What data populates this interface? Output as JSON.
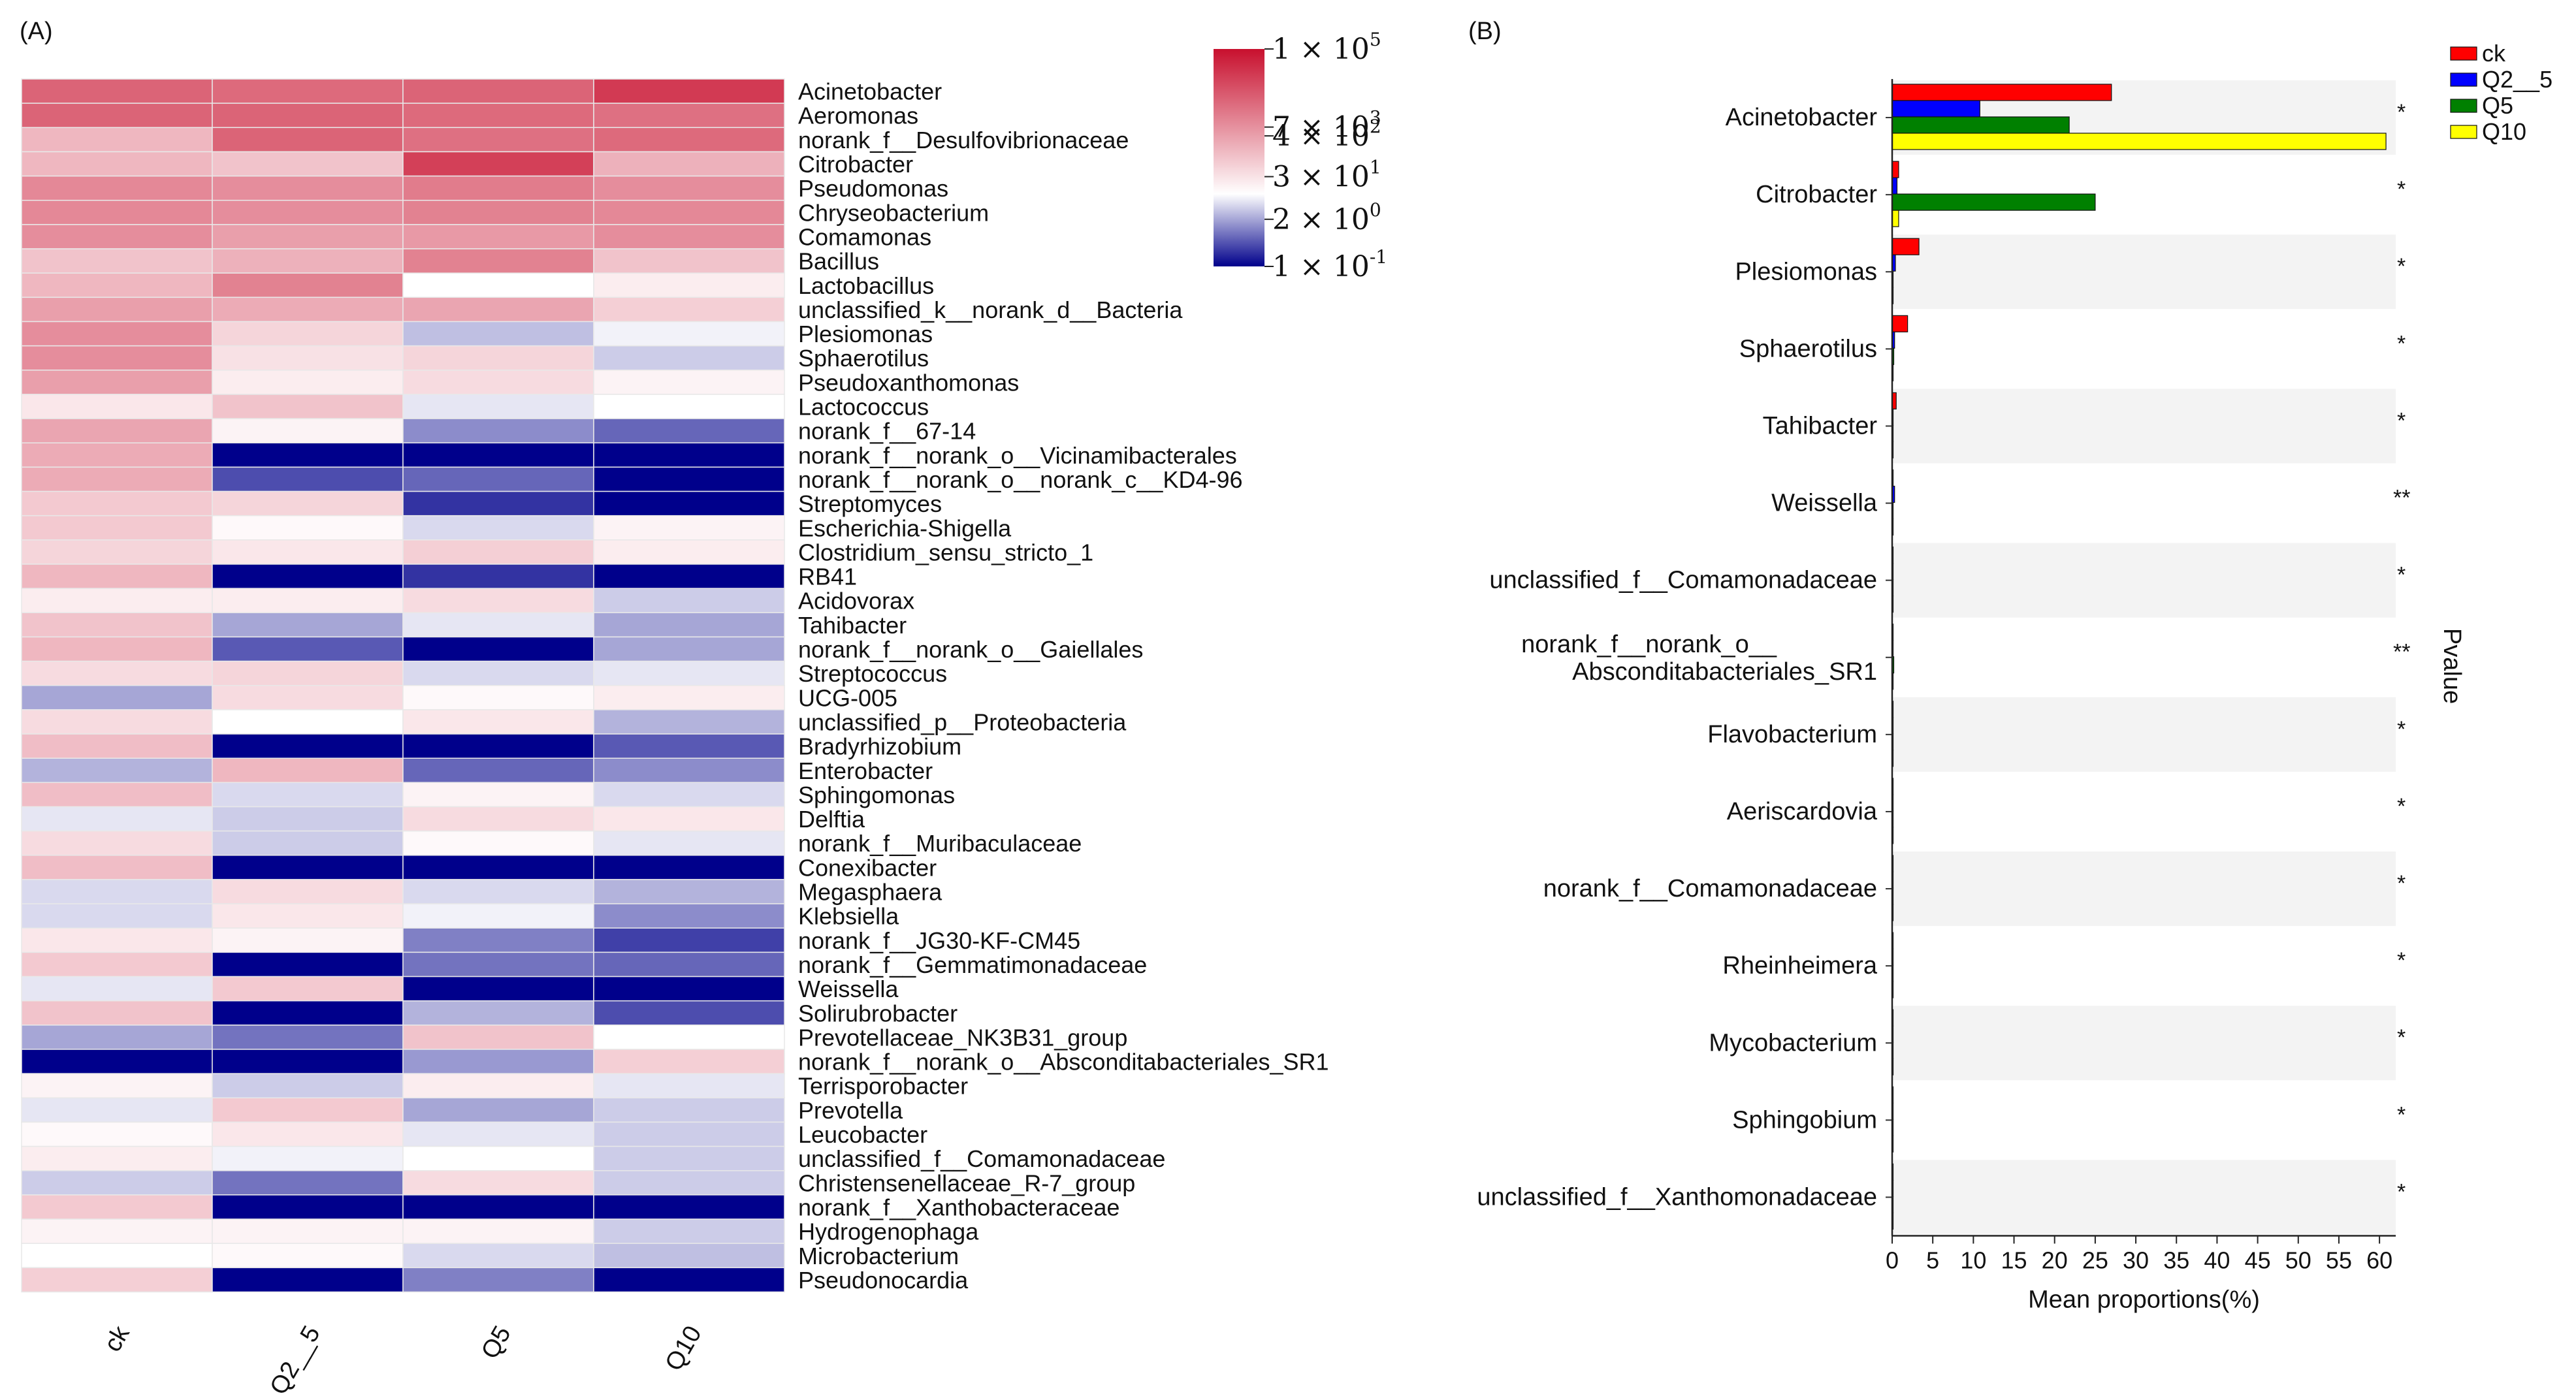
{
  "chart_data": [
    {
      "type": "heatmap",
      "panel_label": "(A)",
      "columns": [
        "ck",
        "Q2__5",
        "Q5",
        "Q10"
      ],
      "rows": [
        "Acinetobacter",
        "Aeromonas",
        "norank_f__Desulfovibrionaceae",
        "Citrobacter",
        "Pseudomonas",
        "Chryseobacterium",
        "Comamonas",
        "Bacillus",
        "Lactobacillus",
        "unclassified_k__norank_d__Bacteria",
        "Plesiomonas",
        "Sphaerotilus",
        "Pseudoxanthomonas",
        "Lactococcus",
        "norank_f__67-14",
        "norank_f__norank_o__Vicinamibacterales",
        "norank_f__norank_o__norank_c__KD4-96",
        "Streptomyces",
        "Escherichia-Shigella",
        "Clostridium_sensu_stricto_1",
        "RB41",
        "Acidovorax",
        "Tahibacter",
        "norank_f__norank_o__Gaiellales",
        "Streptococcus",
        "UCG-005",
        "unclassified_p__Proteobacteria",
        "Bradyrhizobium",
        "Enterobacter",
        "Sphingomonas",
        "Delftia",
        "norank_f__Muribaculaceae",
        "Conexibacter",
        "Megasphaera",
        "Klebsiella",
        "norank_f__JG30-KF-CM45",
        "norank_f__Gemmatimonadaceae",
        "Weissella",
        "Solirubrobacter",
        "Prevotellaceae_NK3B31_group",
        "norank_f__norank_o__Absconditabacteriales_SR1",
        "Terrisporobacter",
        "Prevotella",
        "Leucobacter",
        "unclassified_f__Comamonadaceae",
        "Christensenellaceae_R-7_group",
        "norank_f__Xanthobacteraceae",
        "Hydrogenophaga",
        "Microbacterium",
        "Pseudonocardia"
      ],
      "scale_note": "log10 abundance; colorbar 1e-1 (-1) to 1e5 (5)",
      "values": [
        [
          3.6,
          3.5,
          3.6,
          4.3
        ],
        [
          3.6,
          3.6,
          3.5,
          3.4
        ],
        [
          2.2,
          3.6,
          3.4,
          3.5
        ],
        [
          2.2,
          2.0,
          4.2,
          2.3
        ],
        [
          3.0,
          2.9,
          3.2,
          2.9
        ],
        [
          3.0,
          2.9,
          3.1,
          3.0
        ],
        [
          2.9,
          2.6,
          2.7,
          2.9
        ],
        [
          2.0,
          2.3,
          3.1,
          2.0
        ],
        [
          2.2,
          3.1,
          1.0,
          1.3
        ],
        [
          2.6,
          2.4,
          2.5,
          1.8
        ],
        [
          2.9,
          1.7,
          0.5,
          0.9
        ],
        [
          2.9,
          1.5,
          1.7,
          0.6
        ],
        [
          2.6,
          1.3,
          1.6,
          1.2
        ],
        [
          1.4,
          2.0,
          0.8,
          1.0
        ],
        [
          2.5,
          1.2,
          0.1,
          -0.2
        ],
        [
          2.4,
          -1.0,
          -1.0,
          -1.0
        ],
        [
          2.4,
          -0.4,
          -0.2,
          -1.0
        ],
        [
          1.9,
          1.7,
          -0.6,
          -1.0
        ],
        [
          1.9,
          1.1,
          0.7,
          1.2
        ],
        [
          1.7,
          1.4,
          1.8,
          1.3
        ],
        [
          2.2,
          -1.0,
          -0.6,
          -1.0
        ],
        [
          1.3,
          1.3,
          1.6,
          0.6
        ],
        [
          2.0,
          0.3,
          0.8,
          0.3
        ],
        [
          2.2,
          -0.3,
          -1.0,
          0.3
        ],
        [
          1.6,
          1.7,
          0.7,
          0.8
        ],
        [
          0.3,
          1.6,
          1.1,
          1.3
        ],
        [
          1.6,
          1.0,
          1.4,
          0.4
        ],
        [
          2.1,
          -1.0,
          -1.0,
          -0.3
        ],
        [
          0.4,
          2.2,
          -0.2,
          0.1
        ],
        [
          2.1,
          0.7,
          1.2,
          0.7
        ],
        [
          0.8,
          0.6,
          1.6,
          1.4
        ],
        [
          1.6,
          0.6,
          1.1,
          0.8
        ],
        [
          2.1,
          -1.0,
          -1.0,
          -1.0
        ],
        [
          0.7,
          1.6,
          0.7,
          0.4
        ],
        [
          0.7,
          1.4,
          0.9,
          0.1
        ],
        [
          1.4,
          1.2,
          0.0,
          -0.5
        ],
        [
          1.9,
          -1.0,
          -0.1,
          -0.2
        ],
        [
          0.8,
          1.9,
          -1.0,
          -1.0
        ],
        [
          2.0,
          -1.0,
          0.4,
          -0.4
        ],
        [
          0.3,
          -0.1,
          2.0,
          1.0
        ],
        [
          -1.0,
          -1.0,
          0.2,
          1.8
        ],
        [
          1.2,
          0.6,
          1.3,
          0.8
        ],
        [
          0.8,
          1.9,
          0.3,
          0.6
        ],
        [
          1.1,
          1.4,
          0.8,
          0.6
        ],
        [
          1.3,
          0.9,
          1.0,
          0.6
        ],
        [
          0.6,
          -0.1,
          1.6,
          0.6
        ],
        [
          1.9,
          -1.0,
          -1.0,
          -1.0
        ],
        [
          1.2,
          1.2,
          1.2,
          0.6
        ],
        [
          1.0,
          1.1,
          0.7,
          0.5
        ],
        [
          1.8,
          -1.0,
          0.0,
          -1.0
        ]
      ],
      "colorbar": {
        "tick_bases": [
          "1 × 10",
          "7 × 10",
          "4 × 10",
          "3 × 10",
          "2 × 10",
          "1 × 10"
        ],
        "tick_exps": [
          "5",
          "3",
          "2",
          "1",
          "0",
          "-1"
        ],
        "colors": [
          "#c8102e",
          "#ffffff",
          "#00008b"
        ]
      }
    },
    {
      "type": "bar",
      "orientation": "horizontal",
      "panel_label": "(B)",
      "xlabel": "Mean proportions(%)",
      "ylabel_right": "Pvalue",
      "xlim": [
        0,
        62
      ],
      "xticks": [
        0,
        5,
        10,
        15,
        20,
        25,
        30,
        35,
        40,
        45,
        50,
        55,
        60
      ],
      "categories": [
        "Acinetobacter",
        "Citrobacter",
        "Plesiomonas",
        "Sphaerotilus",
        "Tahibacter",
        "Weissella",
        "unclassified_f__Comamonadaceae",
        "norank_f__norank_o__Absconditabacteriales_SR1",
        "Flavobacterium",
        "Aeriscardovia",
        "norank_f__Comamonadaceae",
        "Rheinheimera",
        "Mycobacterium",
        "Sphingobium",
        "unclassified_f__Xanthomonadaceae"
      ],
      "category_lines": [
        [
          "Acinetobacter"
        ],
        [
          "Citrobacter"
        ],
        [
          "Plesiomonas"
        ],
        [
          "Sphaerotilus"
        ],
        [
          "Tahibacter"
        ],
        [
          "Weissella"
        ],
        [
          "unclassified_f__Comamonadaceae"
        ],
        [
          "norank_f__norank_o__",
          "Absconditabacteriales_SR1"
        ],
        [
          "Flavobacterium"
        ],
        [
          "Aeriscardovia"
        ],
        [
          "norank_f__Comamonadaceae"
        ],
        [
          "Rheinheimera"
        ],
        [
          "Mycobacterium"
        ],
        [
          "Sphingobium"
        ],
        [
          "unclassified_f__Xanthomonadaceae"
        ]
      ],
      "series": [
        {
          "name": "ck",
          "color": "#ff0000",
          "values": [
            27,
            0.8,
            3.3,
            1.9,
            0.5,
            0.05,
            0.1,
            0.05,
            0.1,
            0.05,
            0.1,
            0.1,
            0.1,
            0.1,
            0.1
          ]
        },
        {
          "name": "Q2__5",
          "color": "#0000ff",
          "values": [
            10.8,
            0.6,
            0.4,
            0.3,
            0.1,
            0.3,
            0.1,
            0.05,
            0.1,
            0.05,
            0.1,
            0.1,
            0.1,
            0.1,
            0.1
          ]
        },
        {
          "name": "Q5",
          "color": "#008000",
          "values": [
            21.8,
            25,
            0.05,
            0.2,
            0.05,
            0.05,
            0.05,
            0.2,
            0.1,
            0.05,
            0.1,
            0.05,
            0.05,
            0.05,
            0.05
          ]
        },
        {
          "name": "Q10",
          "color": "#ffff00",
          "values": [
            60.8,
            0.8,
            0.05,
            0.05,
            0.05,
            0.05,
            0.05,
            0.05,
            0.05,
            0.05,
            0.05,
            0.05,
            0.05,
            0.05,
            0.05
          ]
        }
      ],
      "significance": [
        "*",
        "*",
        "*",
        "*",
        "*",
        "**",
        "*",
        "**",
        "*",
        "*",
        "*",
        "*",
        "*",
        "*",
        "*"
      ],
      "legend_position": "top-right"
    }
  ]
}
